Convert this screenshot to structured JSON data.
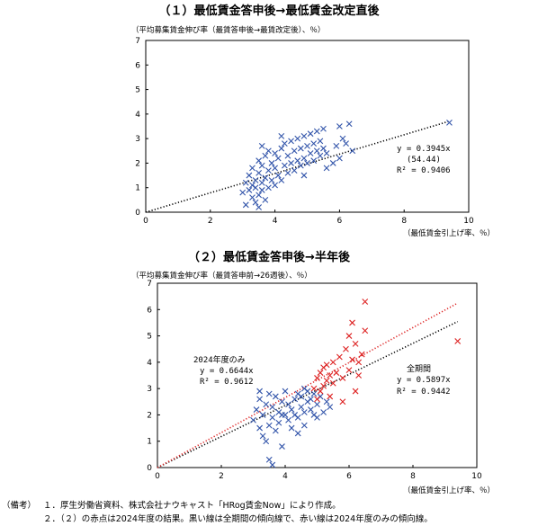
{
  "chart_data": [
    {
      "type": "scatter",
      "title": "（１）最低賃金答申後→最低賃金改定直後",
      "ylabel": "（平均募集賃金伸び率（最賃答申後→最賃改定後）、％）",
      "xlabel": "（最低賃金引上げ率、％）",
      "xlim": [
        0,
        10
      ],
      "ylim": [
        0,
        7
      ],
      "xticks": [
        "0",
        "2",
        "4",
        "6",
        "8",
        "10"
      ],
      "yticks": [
        "0",
        "1",
        "2",
        "3",
        "4",
        "5",
        "6",
        "7"
      ],
      "grid": false,
      "series": [
        {
          "color": "#3355aa",
          "marker": "x",
          "points": [
            [
              3.0,
              0.8
            ],
            [
              3.1,
              1.2
            ],
            [
              3.2,
              0.9
            ],
            [
              3.2,
              1.5
            ],
            [
              3.3,
              0.6
            ],
            [
              3.3,
              1.1
            ],
            [
              3.3,
              1.8
            ],
            [
              3.4,
              0.4
            ],
            [
              3.4,
              1.0
            ],
            [
              3.4,
              1.3
            ],
            [
              3.5,
              0.7
            ],
            [
              3.5,
              1.6
            ],
            [
              3.5,
              2.1
            ],
            [
              3.6,
              0.9
            ],
            [
              3.6,
              1.2
            ],
            [
              3.6,
              1.9
            ],
            [
              3.7,
              0.5
            ],
            [
              3.7,
              1.4
            ],
            [
              3.7,
              2.3
            ],
            [
              3.8,
              1.0
            ],
            [
              3.8,
              1.7
            ],
            [
              3.8,
              2.5
            ],
            [
              3.9,
              1.3
            ],
            [
              3.9,
              2.0
            ],
            [
              4.0,
              1.1
            ],
            [
              4.0,
              1.8
            ],
            [
              4.0,
              2.4
            ],
            [
              4.1,
              1.5
            ],
            [
              4.1,
              2.2
            ],
            [
              4.2,
              1.3
            ],
            [
              4.2,
              2.6
            ],
            [
              4.3,
              1.9
            ],
            [
              4.3,
              2.8
            ],
            [
              4.4,
              1.6
            ],
            [
              4.4,
              2.3
            ],
            [
              4.5,
              2.0
            ],
            [
              4.5,
              2.9
            ],
            [
              4.6,
              1.7
            ],
            [
              4.6,
              2.5
            ],
            [
              4.7,
              2.1
            ],
            [
              4.7,
              3.0
            ],
            [
              4.8,
              1.9
            ],
            [
              4.8,
              2.6
            ],
            [
              4.9,
              2.2
            ],
            [
              4.9,
              3.1
            ],
            [
              5.0,
              2.0
            ],
            [
              5.0,
              2.7
            ],
            [
              5.1,
              2.4
            ],
            [
              5.1,
              3.2
            ],
            [
              5.2,
              2.1
            ],
            [
              5.2,
              2.8
            ],
            [
              5.3,
              2.5
            ],
            [
              5.3,
              3.3
            ],
            [
              5.4,
              2.3
            ],
            [
              5.4,
              2.9
            ],
            [
              5.5,
              2.6
            ],
            [
              5.5,
              3.4
            ],
            [
              5.6,
              2.4
            ],
            [
              5.8,
              2.0
            ],
            [
              5.9,
              2.7
            ],
            [
              6.0,
              3.5
            ],
            [
              6.0,
              2.2
            ],
            [
              6.2,
              2.8
            ],
            [
              6.3,
              3.6
            ],
            [
              6.4,
              2.5
            ],
            [
              3.1,
              0.3
            ],
            [
              3.5,
              0.2
            ],
            [
              3.6,
              2.7
            ],
            [
              4.2,
              3.1
            ],
            [
              4.9,
              1.5
            ],
            [
              5.6,
              1.8
            ],
            [
              6.1,
              3.0
            ],
            [
              9.4,
              3.65
            ]
          ]
        }
      ],
      "trendlines": [
        {
          "slope": 0.3945,
          "color": "#000000"
        }
      ],
      "annotations": {
        "eq": "y = 0.3945x",
        "t": "(54.44)",
        "r2": "R² = 0.9406"
      }
    },
    {
      "type": "scatter",
      "title": "（２）最低賃金答申後→半年後",
      "ylabel": "（平均募集賃金伸び率（最賃答申前→26週後）、％）",
      "xlabel": "（最低賃金引上げ率、％）",
      "xlim": [
        0,
        10
      ],
      "ylim": [
        0,
        7
      ],
      "xticks": [
        "0",
        "2",
        "4",
        "6",
        "8",
        "10"
      ],
      "yticks": [
        "0",
        "1",
        "2",
        "3",
        "4",
        "5",
        "6",
        "7"
      ],
      "grid": false,
      "series": [
        {
          "color": "#3355aa",
          "marker": "x",
          "points": [
            [
              3.0,
              1.8
            ],
            [
              3.1,
              2.2
            ],
            [
              3.2,
              1.5
            ],
            [
              3.2,
              2.6
            ],
            [
              3.3,
              1.2
            ],
            [
              3.3,
              2.0
            ],
            [
              3.4,
              2.4
            ],
            [
              3.4,
              1.0
            ],
            [
              3.5,
              1.6
            ],
            [
              3.5,
              2.8
            ],
            [
              3.5,
              0.3
            ],
            [
              3.6,
              1.9
            ],
            [
              3.6,
              2.3
            ],
            [
              3.7,
              1.4
            ],
            [
              3.7,
              2.7
            ],
            [
              3.8,
              2.1
            ],
            [
              3.8,
              1.7
            ],
            [
              3.9,
              2.5
            ],
            [
              3.9,
              0.8
            ],
            [
              4.0,
              2.0
            ],
            [
              4.0,
              2.9
            ],
            [
              4.1,
              1.8
            ],
            [
              4.1,
              2.4
            ],
            [
              4.2,
              2.2
            ],
            [
              4.2,
              1.5
            ],
            [
              4.3,
              2.6
            ],
            [
              4.3,
              2.0
            ],
            [
              4.4,
              2.8
            ],
            [
              4.4,
              1.9
            ],
            [
              4.5,
              2.3
            ],
            [
              4.5,
              2.7
            ],
            [
              4.6,
              2.1
            ],
            [
              4.6,
              1.6
            ],
            [
              4.7,
              2.5
            ],
            [
              4.7,
              2.9
            ],
            [
              4.8,
              2.2
            ],
            [
              4.8,
              2.6
            ],
            [
              4.9,
              2.0
            ],
            [
              4.9,
              2.8
            ],
            [
              5.0,
              2.4
            ],
            [
              5.1,
              2.7
            ],
            [
              5.2,
              2.1
            ],
            [
              5.3,
              2.5
            ],
            [
              5.4,
              2.3
            ],
            [
              3.2,
              2.9
            ],
            [
              3.6,
              0.1
            ],
            [
              3.9,
              2.0
            ],
            [
              4.4,
              1.3
            ],
            [
              4.6,
              3.0
            ],
            [
              5.0,
              1.9
            ]
          ]
        },
        {
          "color": "#dd2222",
          "marker": "x",
          "points": [
            [
              4.9,
              3.0
            ],
            [
              5.0,
              3.4
            ],
            [
              5.0,
              2.6
            ],
            [
              5.1,
              3.6
            ],
            [
              5.1,
              2.9
            ],
            [
              5.2,
              3.8
            ],
            [
              5.2,
              3.1
            ],
            [
              5.3,
              3.3
            ],
            [
              5.3,
              3.9
            ],
            [
              5.4,
              2.7
            ],
            [
              5.4,
              3.5
            ],
            [
              5.5,
              4.0
            ],
            [
              5.5,
              3.2
            ],
            [
              5.6,
              3.6
            ],
            [
              5.7,
              4.2
            ],
            [
              5.8,
              3.4
            ],
            [
              5.9,
              4.5
            ],
            [
              6.0,
              3.7
            ],
            [
              6.0,
              5.0
            ],
            [
              6.1,
              4.1
            ],
            [
              6.2,
              4.7
            ],
            [
              6.3,
              3.5
            ],
            [
              6.4,
              4.3
            ],
            [
              6.5,
              5.2
            ],
            [
              6.5,
              6.3
            ],
            [
              6.1,
              5.5
            ],
            [
              6.2,
              2.9
            ],
            [
              6.3,
              4.0
            ],
            [
              5.8,
              2.5
            ],
            [
              9.4,
              4.8
            ]
          ]
        }
      ],
      "trendlines": [
        {
          "slope": 0.5897,
          "color": "#000000"
        },
        {
          "slope": 0.6644,
          "color": "#dd2222"
        }
      ],
      "annotations": {
        "red_title": "2024年度のみ",
        "red_eq": "y = 0.6644x",
        "red_r2": "R² = 0.9612",
        "all_title": "全期間",
        "all_eq": "y = 0.5897x",
        "all_r2": "R² = 0.9442"
      }
    }
  ],
  "notes": {
    "label": "（備考）",
    "line1": "１．厚生労働省資料、株式会社ナウキャスト「HRog賃金Now」により作成。",
    "line2": "２．（２）の赤点は2024年度の結果。黒い線は全期間の傾向線で、赤い線は2024年度のみの傾向線。"
  }
}
